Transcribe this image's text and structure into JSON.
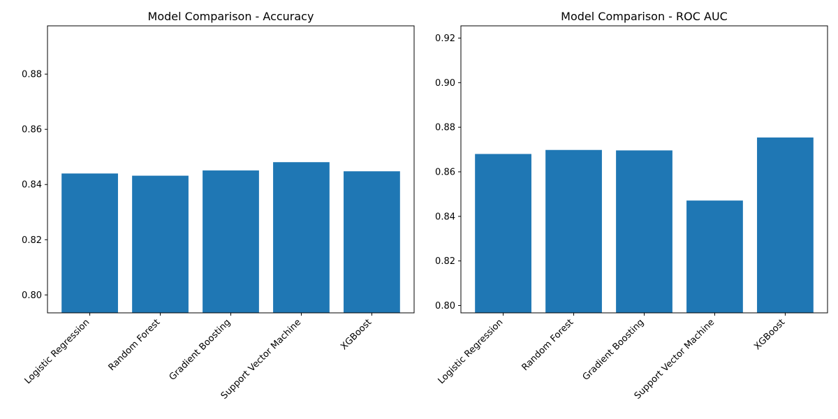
{
  "chart_data": [
    {
      "type": "bar",
      "title": "Model Comparison - Accuracy",
      "xlabel": "",
      "ylabel": "",
      "categories": [
        "Logistic Regression",
        "Random Forest",
        "Gradient Boosting",
        "Support Vector Machine",
        "XGBoost"
      ],
      "values": [
        0.844,
        0.8432,
        0.8451,
        0.8481,
        0.8448
      ],
      "ylim": [
        0.7935,
        0.8975
      ],
      "yticks": [
        "0.80",
        "0.82",
        "0.84",
        "0.86",
        "0.88"
      ],
      "color": "#1f77b4",
      "grid": false
    },
    {
      "type": "bar",
      "title": "Model Comparison - ROC AUC",
      "xlabel": "",
      "ylabel": "",
      "categories": [
        "Logistic Regression",
        "Random Forest",
        "Gradient Boosting",
        "Support Vector Machine",
        "XGBoost"
      ],
      "values": [
        0.868,
        0.8698,
        0.8696,
        0.8471,
        0.8754
      ],
      "ylim": [
        0.7967,
        0.9255
      ],
      "yticks": [
        "0.80",
        "0.82",
        "0.84",
        "0.86",
        "0.88",
        "0.90",
        "0.92"
      ],
      "color": "#1f77b4",
      "grid": false
    }
  ]
}
